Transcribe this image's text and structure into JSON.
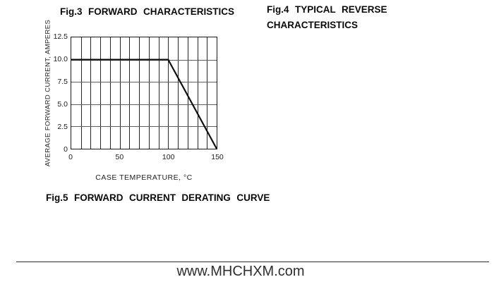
{
  "page": {
    "fig3_title": "Fig.3 FORWARD CHARACTERISTICS",
    "fig4_title_line1": "Fig.4 TYPICAL REVERSE",
    "fig4_title_line2": "CHARACTERISTICS",
    "fig5_caption": "Fig.5 FORWARD CURRENT DERATING CURVE",
    "footer_url": "www.MHCHXM.com"
  },
  "chart_data": {
    "type": "line",
    "title": "Fig.5 FORWARD CURRENT DERATING CURVE",
    "xlabel": "CASE TEMPERATURE, °C",
    "ylabel": "AVERAGE FORWARD CURRENT, AMPERES",
    "xlim": [
      0,
      150
    ],
    "ylim": [
      0,
      12.5
    ],
    "x_grid_step": 10,
    "y_grid_step": 2.5,
    "grid": true,
    "x_ticks": [
      {
        "value": 0,
        "label": "0"
      },
      {
        "value": 50,
        "label": "50"
      },
      {
        "value": 100,
        "label": "100"
      },
      {
        "value": 150,
        "label": "150"
      }
    ],
    "y_ticks": [
      {
        "value": 12.5,
        "label": "12.5"
      },
      {
        "value": 10,
        "label": "10.0"
      },
      {
        "value": 7.5,
        "label": "7.5"
      },
      {
        "value": 5,
        "label": "5.0"
      },
      {
        "value": 2.5,
        "label": "2.5"
      },
      {
        "value": 0,
        "label": "0"
      }
    ],
    "series": [
      {
        "name": "forward-current-derating-curve",
        "points": [
          [
            0,
            10
          ],
          [
            100,
            10
          ],
          [
            150,
            0
          ]
        ]
      }
    ],
    "line_color": "#111111",
    "v_grid_color": "#262626",
    "h_grid_color": "#5f5f5f",
    "border_color": "#1a1a1a"
  }
}
